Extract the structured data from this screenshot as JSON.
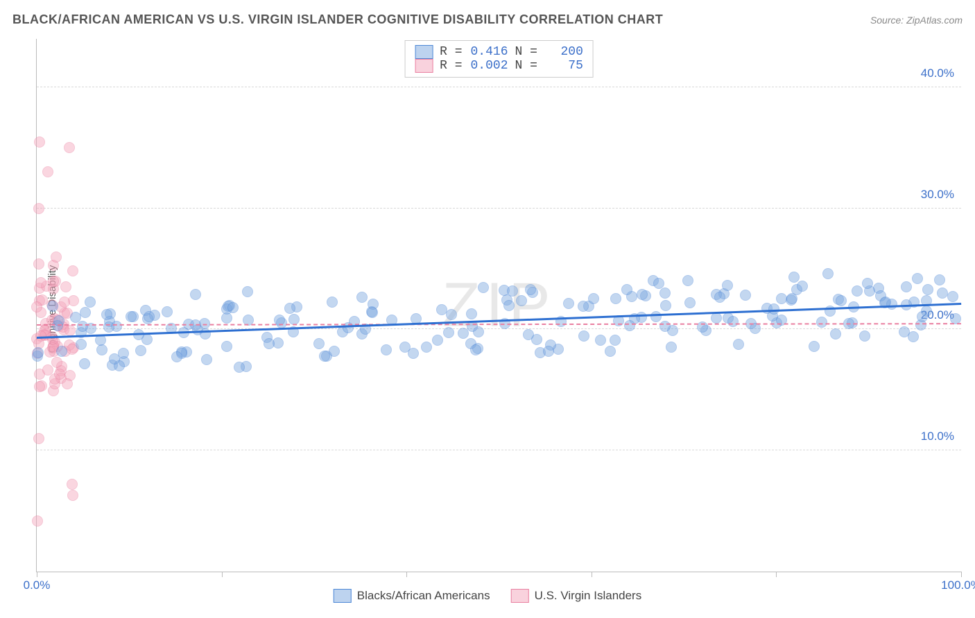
{
  "title": "BLACK/AFRICAN AMERICAN VS U.S. VIRGIN ISLANDER COGNITIVE DISABILITY CORRELATION CHART",
  "source_label": "Source: ",
  "source_name": "ZipAtlas.com",
  "watermark": "ZIP",
  "ylabel": "Cognitive Disability",
  "chart": {
    "type": "scatter",
    "xlim": [
      0,
      100
    ],
    "ylim": [
      0,
      44
    ],
    "ytick_values": [
      10,
      20,
      30,
      40
    ],
    "ytick_labels": [
      "10.0%",
      "20.0%",
      "30.0%",
      "40.0%"
    ],
    "xtick_values": [
      0,
      20,
      40,
      60,
      80,
      100
    ],
    "xtick_labels_shown": {
      "0": "0.0%",
      "100": "100.0%"
    },
    "background_color": "#ffffff",
    "grid_color": "#d8d8d8",
    "axis_color": "#bbbbbb",
    "axis_label_color": "#3b6fc9",
    "point_radius": 8,
    "point_opacity": 0.45,
    "series": [
      {
        "name": "Blacks/African Americans",
        "fill_color": "#7ba7e0",
        "stroke_color": "#4d87d6",
        "trend_color": "#2d6fd1",
        "trend_width": 2.5,
        "trend_y_at_x0": 19.4,
        "trend_y_at_x100": 22.2,
        "r_value": "0.416",
        "n_value": "200",
        "points_note": "approx 200 points spread 0-100 on x, y mostly 18-24"
      },
      {
        "name": "U.S. Virgin Islanders",
        "fill_color": "#f4a6bc",
        "stroke_color": "#e97fa0",
        "trend_color": "#e97fa0",
        "trend_width": 2,
        "trend_y_at_x0": 20.4,
        "trend_y_at_x100": 20.5,
        "r_value": "0.002",
        "n_value": "75",
        "points_note": "approx 75 points clustered near x=0-3, y spread 4-36"
      }
    ]
  },
  "legend_top": {
    "r_label": "R =",
    "n_label": "N ="
  }
}
